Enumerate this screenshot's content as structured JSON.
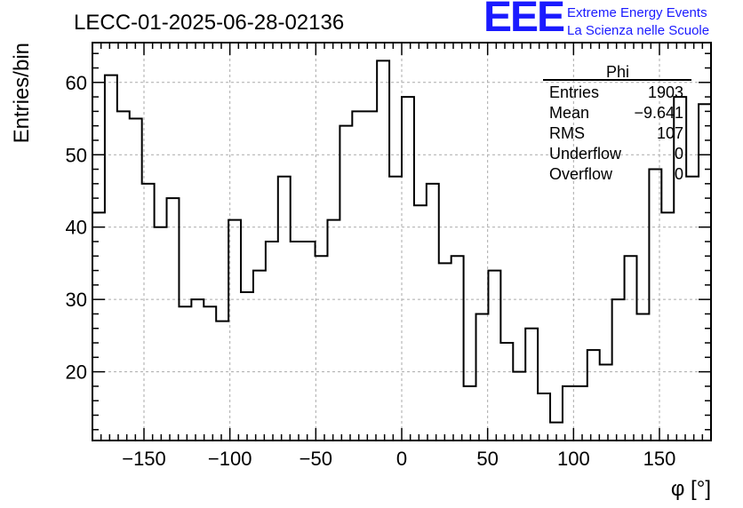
{
  "chart_data": {
    "type": "histogram",
    "title": "LECC-01-2025-06-28-02136",
    "xlabel": "φ [°]",
    "ylabel": "Entries/bin",
    "xlim": [
      -180,
      180
    ],
    "ylim": [
      10.5,
      65.5
    ],
    "x_ticks": [
      -150,
      -100,
      -50,
      0,
      50,
      100,
      150
    ],
    "y_ticks": [
      20,
      30,
      40,
      50,
      60
    ],
    "x_tick_labels": [
      "−150",
      "−100",
      "−50",
      "0",
      "50",
      "100",
      "150"
    ],
    "y_tick_labels": [
      "20",
      "30",
      "40",
      "50",
      "60"
    ],
    "grid": true,
    "bin_edges_start": -180,
    "bin_width": 7.2,
    "values": [
      42,
      61,
      56,
      55,
      46,
      40,
      44,
      29,
      30,
      29,
      27,
      41,
      31,
      34,
      38,
      47,
      38,
      38,
      36,
      41,
      54,
      56,
      56,
      63,
      47,
      58,
      43,
      46,
      35,
      36,
      18,
      28,
      34,
      24,
      20,
      26,
      17,
      13,
      18,
      18,
      23,
      21,
      30,
      36,
      28,
      48,
      42,
      58,
      47,
      57
    ]
  },
  "stats_box": {
    "name": "Phi",
    "rows": [
      {
        "label": "Entries",
        "value": "1903"
      },
      {
        "label": "Mean",
        "value": "−9.641"
      },
      {
        "label": "RMS",
        "value": "107"
      },
      {
        "label": "Underflow",
        "value": "0"
      },
      {
        "label": "Overflow",
        "value": "0"
      }
    ]
  },
  "brand": {
    "logo": "EEE",
    "line1": "Extreme Energy Events",
    "line2": "La Scienza nelle Scuole",
    "color": "#1a1aff"
  }
}
